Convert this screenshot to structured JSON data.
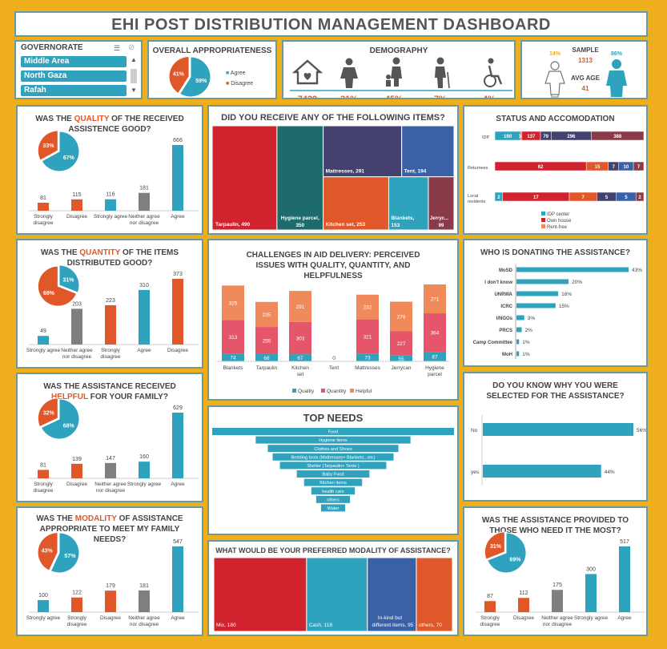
{
  "title": "EHI POST DISTRIBUTION MANAGEMENT DASHBOARD",
  "colors": {
    "teal": "#2fa3bd",
    "orange": "#e0572a",
    "grey": "#7f7f7f",
    "red": "#d0232e",
    "navy": "#44416f",
    "blue": "#3a61a6",
    "maroon": "#8b3a4a",
    "darkteal": "#1e6b6c",
    "salmon": "#f08a5b",
    "pink": "#e6566a"
  },
  "governorate": {
    "label": "GOVERNORATE",
    "items": [
      "Middle Area",
      "North Gaza",
      "Rafah"
    ]
  },
  "overall": {
    "title": "OVERALL APPROPRIATENESS",
    "legend": [
      "Agree",
      "Disagree"
    ],
    "agree_label": "59%",
    "disagree_label": "41%"
  },
  "demography": {
    "title": "DEMOGRAPHY",
    "values": [
      "7429",
      "31%",
      "45%",
      "7%",
      "4%"
    ],
    "icons": [
      "house-icon",
      "woman-icon",
      "child-icon",
      "elderly-icon",
      "wheelchair-icon"
    ]
  },
  "sample": {
    "title": "SAMPLE",
    "count": "1313",
    "female_pct": "14%",
    "male_pct": "86%",
    "avg_age_label": "AVG AGE",
    "avg_age": "41"
  },
  "quality": {
    "title_pre": "WAS THE ",
    "title_hl": "QUALITY",
    "title_post": " OF THE RECEIVED ASSISTENCE GOOD?",
    "pie_labels": [
      "67%",
      "33%"
    ]
  },
  "quantity": {
    "title_pre": "WAS THE ",
    "title_hl": "QUANTITY",
    "title_post": " OF THE ITEMS DISTRIBUTED GOOD?",
    "pie_labels": [
      "31%",
      "69%"
    ]
  },
  "helpful": {
    "title_pre": "WAS THE ASSISTANCE RECEIVED ",
    "title_hl": "HELPFUL",
    "title_post": " FOR YOUR FAMILY?",
    "pie_labels": [
      "68%",
      "32%"
    ]
  },
  "modality_q": {
    "title_pre": "WAS THE ",
    "title_hl": "MODALITY",
    "title_post": " OF ASSISTANCE APPROPRIATE TO MEET MY FAMILY NEEDS?",
    "pie_labels": [
      "57%",
      "43%"
    ]
  },
  "items": {
    "title": "DID YOU RECEIVE ANY OF THE FOLLOWING ITEMS?"
  },
  "challenges": {
    "title": "CHALLENGES IN AID DELIVERY: PERCEIVED ISSUES WITH QUALITY, QUANTITY, AND HELPFULNESS"
  },
  "top_needs": {
    "title": "TOP NEEDS"
  },
  "pref_modality": {
    "title": "WHAT WOULD BE YOUR PREFERRED MODALITY OF ASSISTANCE?"
  },
  "status": {
    "title": "STATUS AND ACCOMODATION"
  },
  "donors": {
    "title": "WHO IS DONATING THE ASSISTANCE?"
  },
  "selected": {
    "title": "DO YOU KNOW WHY YOU WERE SELECTED FOR THE ASSISTANCE?"
  },
  "need_most": {
    "title": "WAS THE ASSISTANCE  PROVIDED TO THOSE WHO NEED IT THE MOST?",
    "pie_labels": [
      "69%",
      "31%"
    ]
  },
  "chart_data": [
    {
      "id": "overall",
      "type": "pie",
      "categories": [
        "Agree",
        "Disagree"
      ],
      "values": [
        59,
        41
      ],
      "legend": "right"
    },
    {
      "id": "quality",
      "type": "bar",
      "categories": [
        "Strongly disagree",
        "Disagree",
        "Strongly agree",
        "Neither agree nor disagree",
        "Agree"
      ],
      "values": [
        81,
        115,
        116,
        181,
        666
      ],
      "colors": [
        "orange",
        "orange",
        "teal",
        "grey",
        "teal"
      ],
      "pie": [
        67,
        33
      ]
    },
    {
      "id": "quantity",
      "type": "bar",
      "categories": [
        "Strongly agree",
        "Neither agree nor disagree",
        "Strongly disagree",
        "Agree",
        "Disagree"
      ],
      "values": [
        49,
        203,
        223,
        310,
        373
      ],
      "colors": [
        "teal",
        "grey",
        "orange",
        "teal",
        "orange"
      ],
      "pie": [
        31,
        69
      ]
    },
    {
      "id": "helpful",
      "type": "bar",
      "categories": [
        "Strongly disagree",
        "Disagree",
        "Neither agree nor disagree",
        "Strongly agree",
        "Agree"
      ],
      "values": [
        81,
        139,
        147,
        160,
        629
      ],
      "colors": [
        "orange",
        "orange",
        "grey",
        "teal",
        "teal"
      ],
      "pie": [
        68,
        32
      ]
    },
    {
      "id": "modality_q",
      "type": "bar",
      "categories": [
        "Strongly agree",
        "Strongly disagree",
        "Disagree",
        "Neither agree nor disagree",
        "Agree"
      ],
      "values": [
        100,
        122,
        179,
        181,
        547
      ],
      "colors": [
        "teal",
        "orange",
        "orange",
        "grey",
        "teal"
      ],
      "pie": [
        57,
        43
      ]
    },
    {
      "id": "need_most",
      "type": "bar",
      "categories": [
        "Strongly disagree",
        "Disagree",
        "Neither agree nor disagree",
        "Strongly agree",
        "Agree"
      ],
      "values": [
        87,
        112,
        175,
        300,
        517
      ],
      "colors": [
        "orange",
        "orange",
        "grey",
        "teal",
        "teal"
      ],
      "pie": [
        69,
        31
      ]
    },
    {
      "id": "items",
      "type": "treemap",
      "entries": [
        {
          "label": "Tarpaulin, 490",
          "value": 490,
          "color": "red"
        },
        {
          "label": "Hygiene parcel, 350",
          "value": 350,
          "color": "darkteal"
        },
        {
          "label": "Mattresses, 291",
          "value": 291,
          "color": "navy"
        },
        {
          "label": "Kitchen set, 253",
          "value": 253,
          "color": "orange"
        },
        {
          "label": "Tent, 194",
          "value": 194,
          "color": "blue"
        },
        {
          "label": "Blankets, 153",
          "value": 153,
          "color": "teal"
        },
        {
          "label": "Jerryc...",
          "sublabel": "99",
          "value": 99,
          "color": "maroon"
        }
      ]
    },
    {
      "id": "challenges",
      "type": "bar",
      "stacked": true,
      "categories": [
        "Blankets",
        "Tarpaulin",
        "Kitchen set",
        "Tent",
        "Mattresses",
        "Jerrycan",
        "Hygiene parcel"
      ],
      "series": [
        {
          "name": "Quality",
          "values": [
            74,
            68,
            67,
            0,
            73,
            55,
            87
          ],
          "color": "teal"
        },
        {
          "name": "Quantity",
          "values": [
            313,
            255,
            303,
            0,
            321,
            227,
            364
          ],
          "color": "pink"
        },
        {
          "name": "Helpful",
          "values": [
            325,
            235,
            291,
            0,
            232,
            278,
            271
          ],
          "color": "salmon"
        }
      ],
      "tent_total": "0",
      "legend": "bottom"
    },
    {
      "id": "top_needs",
      "type": "bar",
      "orientation": "funnel",
      "categories": [
        "Food",
        "Hygiene items",
        "Clothes and Shoes",
        "Bedding tools (Mattresses+ Blankets...etc)",
        "Shelter (Tarpaulin+ Tents )",
        "Baby Food",
        "Kitchen items",
        "health care",
        "others",
        "Water"
      ],
      "values": [
        100,
        64,
        54,
        50,
        44,
        30,
        24,
        18,
        14,
        10
      ]
    },
    {
      "id": "pref_modality",
      "type": "treemap",
      "entries": [
        {
          "label": "Mix, 180",
          "value": 180,
          "color": "red"
        },
        {
          "label": "Cash, 118",
          "value": 118,
          "color": "teal"
        },
        {
          "label": "In-kind but different items, 95",
          "value": 95,
          "color": "blue"
        },
        {
          "label": "others, 70",
          "value": 70,
          "color": "orange"
        }
      ]
    },
    {
      "id": "status",
      "type": "bar",
      "orientation": "horizontal",
      "stacked": true,
      "categories": [
        "IDP",
        "Returnees",
        "Local residents"
      ],
      "series_values": [
        [
          190,
          10,
          137,
          79,
          296,
          388
        ],
        [
          62,
          15,
          7,
          10,
          7
        ],
        [
          2,
          17,
          7,
          5,
          5,
          2
        ]
      ],
      "series_colors": [
        [
          "teal",
          "orange",
          "red",
          "navy",
          "navy",
          "maroon"
        ],
        [
          "red",
          "orange",
          "navy",
          "blue",
          "maroon"
        ],
        [
          "teal",
          "red",
          "orange",
          "navy",
          "blue",
          "maroon"
        ]
      ],
      "legend_entries": [
        "IDP center",
        "Own house",
        "Rent-free"
      ],
      "legend": "bottom"
    },
    {
      "id": "donors",
      "type": "bar",
      "orientation": "horizontal",
      "categories": [
        "MoSD",
        "I don't know",
        "UNRWA",
        "ICRC",
        "I/NGOs",
        "PRCS",
        "Camp Committee",
        "MoH"
      ],
      "values": [
        43,
        20,
        16,
        15,
        3,
        2,
        1,
        1
      ],
      "value_labels": [
        "43%",
        "20%",
        "16%",
        "15%",
        "3%",
        "2%",
        "1%",
        "1%"
      ]
    },
    {
      "id": "selected",
      "type": "bar",
      "orientation": "horizontal",
      "categories": [
        "No",
        "yes"
      ],
      "values": [
        56,
        44
      ],
      "value_labels": [
        "56%",
        "44%"
      ]
    }
  ]
}
